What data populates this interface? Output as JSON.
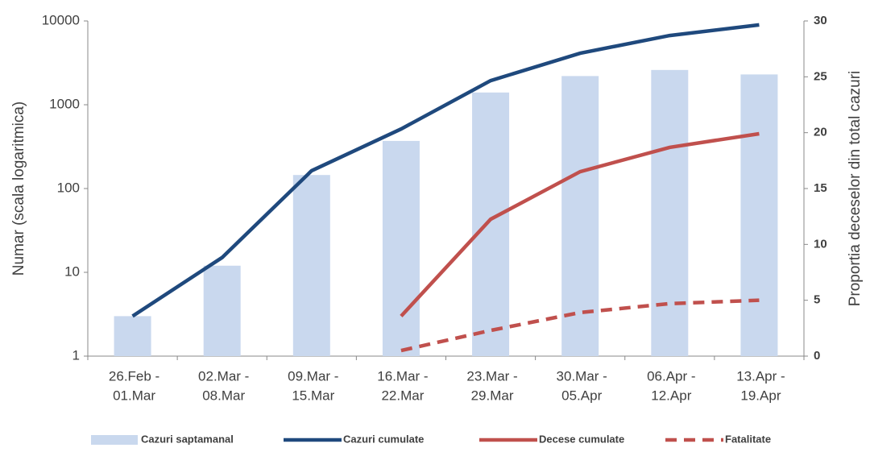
{
  "chart_data": {
    "type": "bar-line",
    "y_label": "Numar (scala logaritmica)",
    "y2_label": "Proportia deceselor din total cazuri",
    "categories": [
      [
        "26.Feb -",
        "01.Mar"
      ],
      [
        "02.Mar -",
        "08.Mar"
      ],
      [
        "09.Mar -",
        "15.Mar"
      ],
      [
        "16.Mar -",
        "22.Mar"
      ],
      [
        "23.Mar -",
        "29.Mar"
      ],
      [
        "30.Mar -",
        "05.Apr"
      ],
      [
        "06.Apr -",
        "12.Apr"
      ],
      [
        "13.Apr -",
        "19.Apr"
      ]
    ],
    "series": [
      {
        "name": "Cazuri saptamanal",
        "type": "bar",
        "color": "#c9d8ee",
        "values": [
          3,
          12,
          145,
          370,
          1400,
          2200,
          2600,
          2300
        ]
      },
      {
        "name": "Cazuri cumulate",
        "type": "line",
        "color": "#1f497d",
        "values": [
          3,
          15,
          163,
          514,
          1940,
          4120,
          6700,
          8980
        ]
      },
      {
        "name": "Decese cumulate",
        "type": "line",
        "color": "#c0504d",
        "values": [
          null,
          null,
          null,
          3,
          43,
          159,
          310,
          451
        ]
      },
      {
        "name": "Fatalitate",
        "type": "line",
        "dashed": true,
        "axis": "y2",
        "color": "#c0504d",
        "values": [
          null,
          null,
          null,
          0.5,
          2.3,
          3.9,
          4.7,
          5.0
        ]
      }
    ],
    "y_scale": "log",
    "ylim": [
      1,
      10000
    ],
    "yticks": [
      1,
      10,
      100,
      1000,
      10000
    ],
    "y2lim": [
      0,
      30
    ],
    "y2ticks": [
      0,
      5,
      10,
      15,
      20,
      25,
      30
    ],
    "legend": "bottom"
  }
}
